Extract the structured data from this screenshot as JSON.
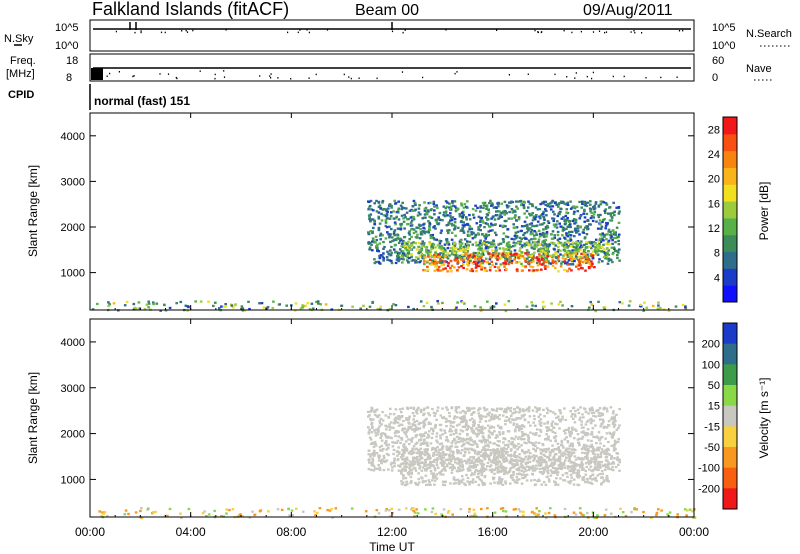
{
  "header": {
    "station": "Falkland Islands (fitACF)",
    "beam": "Beam 00",
    "date": "09/Aug/2011"
  },
  "strips": {
    "nsky_label": "N.Sky",
    "nsky_ticks": [
      "10^5",
      "10^0"
    ],
    "nsearch_label": "N.Search",
    "nsearch_ticks": [
      "10^5",
      "10^0"
    ],
    "freq_label": "Freq.",
    "freq_unit": "[MHz]",
    "freq_ticks": [
      "18",
      "8"
    ],
    "nave_label": "Nave",
    "nave_ticks": [
      "60",
      "0"
    ],
    "cpid_label": "CPID",
    "cpid_value": "normal (fast) 151"
  },
  "chart_data": [
    {
      "type": "heatmap",
      "title": "",
      "xlabel": "Time UT",
      "ylabel": "Slant Range [km]",
      "x_ticks": [
        "00:00",
        "04:00",
        "08:00",
        "12:00",
        "16:00",
        "20:00",
        "00:00"
      ],
      "xlim_hours": [
        0,
        24
      ],
      "y_ticks": [
        1000,
        2000,
        3000,
        4000
      ],
      "ylim": [
        180,
        4500
      ],
      "colorbar": {
        "label": "Power [dB]",
        "ticks": [
          4,
          8,
          12,
          16,
          20,
          24,
          28
        ],
        "range": [
          0,
          30
        ],
        "colors": [
          "#1010ff",
          "#1a3cc8",
          "#2e6e8a",
          "#3c8c5a",
          "#58b048",
          "#9ccc3c",
          "#f0e020",
          "#f8b418",
          "#f88410",
          "#f85010",
          "#f01818"
        ]
      },
      "regions": [
        {
          "t0": 11.0,
          "t1": 21.0,
          "r0": 1200,
          "r1": 2600,
          "value_range": [
            4,
            12
          ]
        },
        {
          "t0": 12.3,
          "t1": 20.6,
          "r0": 1350,
          "r1": 1700,
          "value_range": [
            10,
            18
          ]
        },
        {
          "t0": 13.2,
          "t1": 20.0,
          "r0": 1050,
          "r1": 1450,
          "value_range": [
            18,
            30
          ]
        },
        {
          "t0": 0.0,
          "t1": 24.0,
          "r0": 180,
          "r1": 400,
          "value_range": [
            4,
            20
          ]
        }
      ],
      "grid": false
    },
    {
      "type": "heatmap",
      "title": "",
      "xlabel": "Time UT",
      "ylabel": "Slant Range [km]",
      "x_ticks": [
        "00:00",
        "04:00",
        "08:00",
        "12:00",
        "16:00",
        "20:00",
        "00:00"
      ],
      "xlim_hours": [
        0,
        24
      ],
      "y_ticks": [
        1000,
        2000,
        3000,
        4000
      ],
      "ylim": [
        180,
        4500
      ],
      "colorbar": {
        "label": "Velocity [m s⁻¹]",
        "ticks": [
          200,
          100,
          50,
          15,
          -15,
          -50,
          -100,
          -200
        ],
        "colors": [
          "#1a3cc8",
          "#2e6e8a",
          "#3c9c4a",
          "#88d848",
          "#c8c8c0",
          "#f8d040",
          "#f89820",
          "#f86010",
          "#f01818"
        ]
      },
      "regions": [
        {
          "t0": 11.0,
          "t1": 21.0,
          "r0": 1200,
          "r1": 2600,
          "value_range": [
            -15,
            15
          ]
        },
        {
          "t0": 12.3,
          "t1": 20.6,
          "r0": 900,
          "r1": 1700,
          "value_range": [
            -15,
            15
          ]
        },
        {
          "t0": 0.0,
          "t1": 24.0,
          "r0": 180,
          "r1": 400,
          "value_range": [
            -100,
            50
          ]
        }
      ],
      "grid": false
    }
  ]
}
